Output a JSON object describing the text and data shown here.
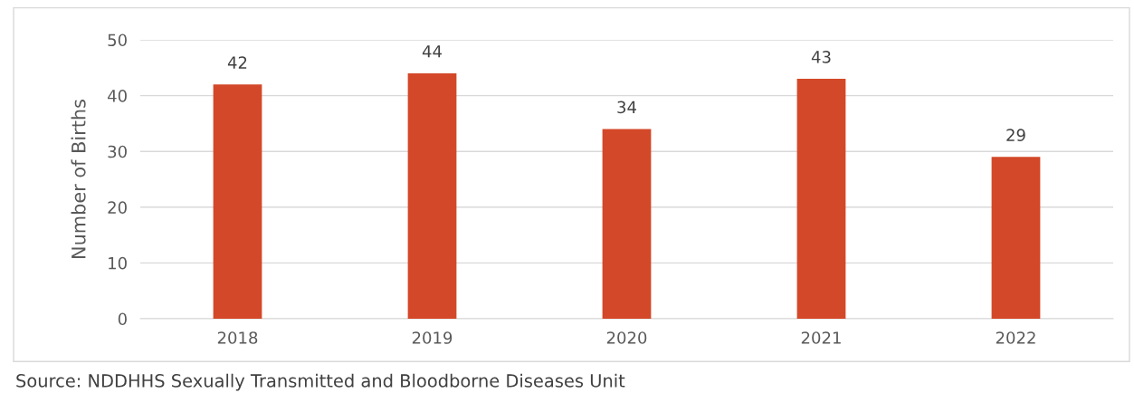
{
  "chart_data": {
    "type": "bar",
    "ylabel": "Number of Births",
    "categories": [
      "2018",
      "2019",
      "2020",
      "2021",
      "2022"
    ],
    "values": [
      42,
      44,
      34,
      43,
      29
    ],
    "color": "#d34828",
    "ylim": [
      0,
      50
    ],
    "yticks": [
      0,
      10,
      20,
      30,
      40,
      50
    ],
    "grid": "y",
    "data_labels": true,
    "annotations": [
      "Source: NDDHHS Sexually Transmitted and Bloodborne Diseases Unit"
    ]
  }
}
